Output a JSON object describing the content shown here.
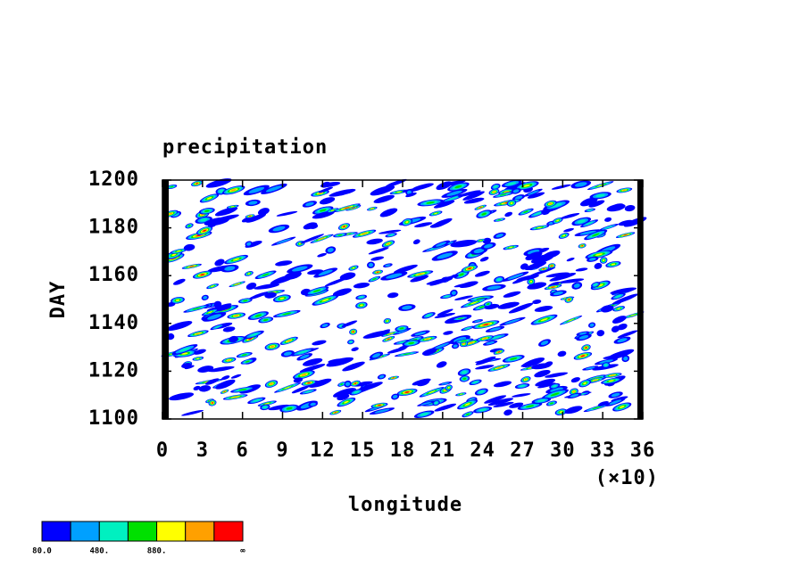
{
  "chart_data": {
    "type": "contour",
    "title": "precipitation",
    "xlabel": "longitude",
    "ylabel": "DAY",
    "x_multiplier": "(×10)",
    "xlim": [
      0,
      36
    ],
    "xticks": [
      0,
      3,
      6,
      9,
      12,
      15,
      18,
      21,
      24,
      27,
      30,
      33,
      36
    ],
    "ylim": [
      1100,
      1200
    ],
    "yticks": [
      1100,
      1120,
      1140,
      1160,
      1180,
      1200
    ],
    "colorbar": {
      "colors": [
        "#0000ff",
        "#00a0ff",
        "#00f0c0",
        "#00e000",
        "#ffff00",
        "#ffa000",
        "#ff0000"
      ],
      "labels": [
        "80.0",
        null,
        "480.",
        null,
        "880.",
        null,
        null,
        "∞"
      ]
    }
  }
}
